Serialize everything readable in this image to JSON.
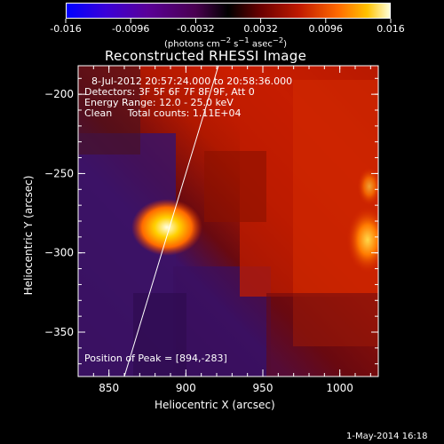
{
  "colorbar": {
    "ticks": [
      "-0.016",
      "-0.0096",
      "-0.0032",
      "0.0032",
      "0.0096",
      "0.016"
    ],
    "tick_values": [
      -0.016,
      -0.0096,
      -0.0032,
      0.0032,
      0.0096,
      0.016
    ],
    "range": [
      -0.016,
      0.016
    ],
    "units_html": "(photons cm<sup>−2</sup> s<sup>−1</sup> asec<sup>−2</sup>)"
  },
  "plot": {
    "title": "Reconstructed RHESSI Image",
    "info": {
      "time": "8-Jul-2012 20:57:24.000 to 20:58:36.000",
      "detectors": "Detectors: 3F 5F 6F 7F 8F 9F, Att 0",
      "energy": "Energy Range: 12.0 - 25.0 keV",
      "clean": "Clean     Total counts: 1.11E+04"
    },
    "peak": "Position of Peak = [894,-283]",
    "xlabel": "Heliocentric X (arcsec)",
    "ylabel": "Heliocentric Y (arcsec)",
    "xrange": [
      830,
      1025
    ],
    "yrange": [
      -378,
      -182
    ],
    "xticks": [
      850,
      900,
      950,
      1000
    ],
    "xtick_labels": [
      "850",
      "900",
      "950",
      "1000"
    ],
    "yticks": [
      -200,
      -250,
      -300,
      -350
    ],
    "ytick_labels": [
      "−200",
      "−250",
      "−300",
      "−350"
    ]
  },
  "footer_date": "1-May-2014 16:18"
}
